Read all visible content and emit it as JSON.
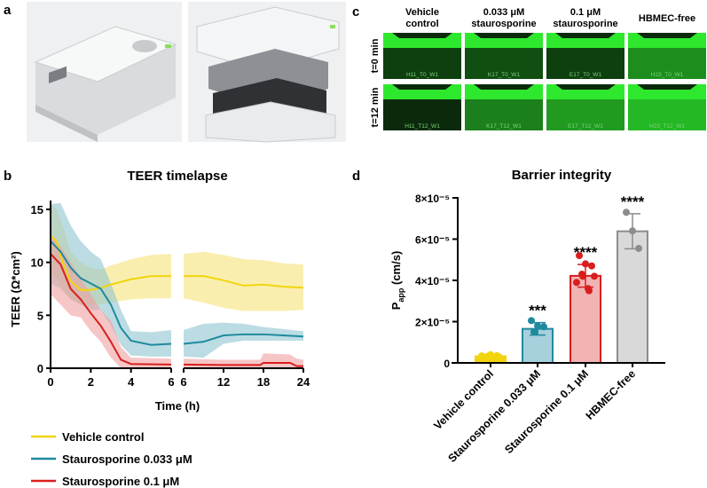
{
  "panels": {
    "a": "a",
    "b": "b",
    "c": "c",
    "d": "d"
  },
  "panel_c": {
    "columns": [
      "Vehicle control",
      "0.033 μM staurosporine",
      "0.1 μM staurosporine",
      "HBMEC-free"
    ],
    "column_lines": [
      [
        "Vehicle",
        "control"
      ],
      [
        "0.033 μM",
        "staurosporine"
      ],
      [
        "0.1 μM",
        "staurosporine"
      ],
      [
        "HBMEC-free",
        ""
      ]
    ],
    "rows": [
      "t=0 min",
      "t=12 min"
    ],
    "tile_labels": [
      [
        "H11_T0_W1",
        "K17_T0_W1",
        "E17_T0_W1",
        "H23_T0_W1"
      ],
      [
        "H11_T12_W1",
        "K17_T12_W1",
        "E17_T12_W1",
        "H23_T12_W1"
      ]
    ],
    "green": "#2ee82e"
  },
  "legend": [
    {
      "label": "Vehicle control",
      "color": "#f2d40c"
    },
    {
      "label": "Staurosporine 0.033 μM",
      "color": "#1f8a9e"
    },
    {
      "label": "Staurosporine 0.1 μM",
      "color": "#d81e1e"
    }
  ],
  "chart_data": [
    {
      "type": "line",
      "title": "TEER timelapse",
      "xlabel": "Time (h)",
      "ylabel": "TEER (Ω*cm²)",
      "ylim": [
        0,
        16
      ],
      "yticks": [
        0,
        5,
        10,
        15
      ],
      "x_segments": [
        {
          "range": [
            0,
            6
          ],
          "ticks": [
            0,
            2,
            4,
            6
          ]
        },
        {
          "range": [
            6,
            24
          ],
          "ticks": [
            6,
            12,
            18,
            24
          ]
        }
      ],
      "series": [
        {
          "name": "Vehicle control",
          "color": "#f2d40c",
          "band": "#f7e27a",
          "points": [
            [
              0,
              12.5,
              9,
              15.5
            ],
            [
              0.3,
              12,
              8.5,
              15
            ],
            [
              0.6,
              10,
              7.5,
              13.5
            ],
            [
              1,
              8.2,
              6.5,
              11
            ],
            [
              1.5,
              7.4,
              6,
              10
            ],
            [
              2,
              7.4,
              6,
              9.5
            ],
            [
              2.5,
              7.6,
              6,
              9.3
            ],
            [
              3,
              7.9,
              6.2,
              9.7
            ],
            [
              4,
              8.4,
              6.5,
              10.3
            ],
            [
              5,
              8.7,
              6.6,
              10.7
            ],
            [
              6,
              8.7,
              6.6,
              10.8
            ],
            [
              9,
              8.7,
              6.2,
              11
            ],
            [
              12,
              8.3,
              5.7,
              10.7
            ],
            [
              15,
              7.8,
              5.4,
              10.3
            ],
            [
              18,
              7.9,
              5.4,
              10.2
            ],
            [
              21,
              7.7,
              5.4,
              9.9
            ],
            [
              24,
              7.6,
              5.5,
              9.8
            ]
          ]
        },
        {
          "name": "Staurosporine 0.033 μM",
          "color": "#1f8a9e",
          "band": "#8fc4d2",
          "points": [
            [
              0,
              12,
              8,
              15.5
            ],
            [
              0.5,
              11,
              7.5,
              15.6
            ],
            [
              1,
              9.5,
              6.5,
              13.5
            ],
            [
              1.5,
              8.5,
              6,
              12
            ],
            [
              2,
              8,
              5.5,
              11
            ],
            [
              2.5,
              7.5,
              5.5,
              10.3
            ],
            [
              3,
              6,
              4,
              8
            ],
            [
              3.5,
              3.8,
              2.2,
              5.5
            ],
            [
              4,
              2.6,
              1.2,
              3.5
            ],
            [
              5,
              2.2,
              1.1,
              3.4
            ],
            [
              6,
              2.3,
              1.1,
              3.6
            ],
            [
              9,
              2.5,
              1,
              4.2
            ],
            [
              12,
              3.1,
              2.3,
              4.3
            ],
            [
              15,
              3.2,
              2.6,
              4.2
            ],
            [
              18,
              3.2,
              2.6,
              3.9
            ],
            [
              21,
              3.1,
              2.6,
              3.7
            ],
            [
              24,
              3,
              2.6,
              3.5
            ]
          ]
        },
        {
          "name": "Staurosporine 0.1 μM",
          "color": "#d81e1e",
          "band": "#f0a0a0",
          "points": [
            [
              0,
              10.8,
              7,
              12.5
            ],
            [
              0.5,
              9.8,
              6,
              11.5
            ],
            [
              1,
              7.5,
              5,
              10
            ],
            [
              1.5,
              6.5,
              4.8,
              8.5
            ],
            [
              2,
              5.2,
              3.5,
              7
            ],
            [
              2.5,
              4,
              2.5,
              5.5
            ],
            [
              3,
              2.5,
              1,
              4.5
            ],
            [
              3.5,
              0.8,
              0,
              2
            ],
            [
              4,
              0.4,
              0,
              1
            ],
            [
              6,
              0.35,
              0,
              0.9
            ],
            [
              12,
              0.3,
              0,
              0.8
            ],
            [
              17.5,
              0.3,
              0,
              0.8
            ],
            [
              18,
              0.5,
              0,
              1.4
            ],
            [
              22,
              0.5,
              0,
              1.3
            ],
            [
              23,
              0.2,
              0,
              0.9
            ],
            [
              24,
              0.2,
              0,
              0.8
            ]
          ]
        }
      ]
    },
    {
      "type": "bar",
      "title": "Barrier integrity",
      "ylabel": "Papp (cm/s)",
      "ylabel_main": "P",
      "ylabel_sub": "app",
      "ylabel_rest": " (cm/s)",
      "ylim": [
        0,
        8e-05
      ],
      "yticks": [
        {
          "value": 0,
          "label": "0"
        },
        {
          "value": 2e-05,
          "label": "2×10⁻⁵"
        },
        {
          "value": 4e-05,
          "label": "4×10⁻⁵"
        },
        {
          "value": 6e-05,
          "label": "6×10⁻⁵"
        },
        {
          "value": 8e-05,
          "label": "8×10⁻⁵"
        }
      ],
      "categories": [
        "Vehicle control",
        "Staurosporine 0.033 μM",
        "Staurosporine 0.1 μM",
        "HBMEC-free"
      ],
      "values": [
        3.2e-06,
        1.65e-05,
        4.22e-05,
        6.38e-05
      ],
      "sd": [
        5e-07,
        3e-06,
        5.5e-06,
        8.5e-06
      ],
      "points": [
        [
          2.5e-06,
          4e-06,
          3.5e-06,
          3e-06,
          3.2e-06,
          2.8e-06,
          3.4e-06
        ],
        [
          2.05e-05,
          1.8e-05,
          1.75e-05,
          1.5e-05,
          1.5e-05
        ],
        [
          5.2e-05,
          4.8e-05,
          4.7e-05,
          4.3e-05,
          4.2e-05,
          4.2e-05,
          3.9e-05,
          3.6e-05,
          3.5e-05
        ],
        [
          7.3e-05,
          6.4e-05,
          5.55e-05
        ]
      ],
      "significance": [
        "",
        "***",
        "****",
        "****"
      ],
      "colors": [
        {
          "fill": "#f2d40c",
          "edge": "#f2d40c",
          "dot": "#f2d40c"
        },
        {
          "fill": "#a6d0dc",
          "edge": "#1f8a9e",
          "dot": "#1f8a9e"
        },
        {
          "fill": "#f2b3b3",
          "edge": "#d81e1e",
          "dot": "#d81e1e"
        },
        {
          "fill": "#d9d9d9",
          "edge": "#8c8c8c",
          "dot": "#8c8c8c"
        }
      ]
    }
  ]
}
